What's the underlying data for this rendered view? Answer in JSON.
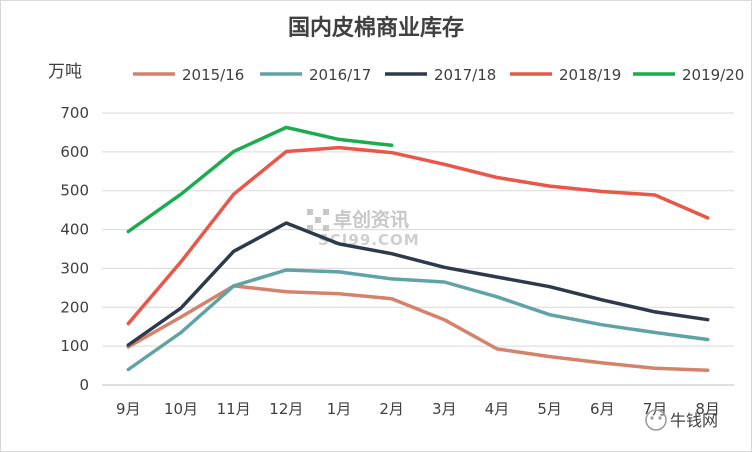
{
  "chart_data": {
    "type": "line",
    "title": "国内皮棉商业库存",
    "ylabel": "万吨",
    "xlabel": "",
    "categories": [
      "9月",
      "10月",
      "11月",
      "12月",
      "1月",
      "2月",
      "3月",
      "4月",
      "5月",
      "6月",
      "7月",
      "8月"
    ],
    "ylim": [
      0,
      700
    ],
    "yticks": [
      0,
      100,
      200,
      300,
      400,
      500,
      600,
      700
    ],
    "grid": true,
    "legend_position": "top",
    "series": [
      {
        "name": "2015/16",
        "color": "#d4826a",
        "values": [
          98,
          175,
          255,
          240,
          235,
          222,
          168,
          93,
          73,
          57,
          43,
          38
        ]
      },
      {
        "name": "2016/17",
        "color": "#5fa3a6",
        "values": [
          40,
          135,
          255,
          296,
          291,
          273,
          265,
          227,
          181,
          155,
          135,
          117
        ]
      },
      {
        "name": "2017/18",
        "color": "#2e3a4b",
        "values": [
          103,
          198,
          344,
          417,
          363,
          338,
          303,
          278,
          253,
          219,
          188,
          168
        ]
      },
      {
        "name": "2018/19",
        "color": "#e8574a",
        "values": [
          158,
          317,
          491,
          601,
          611,
          598,
          568,
          534,
          512,
          498,
          489,
          430
        ]
      },
      {
        "name": "2019/20",
        "color": "#1aac4f",
        "values": [
          395,
          491,
          601,
          663,
          632,
          617,
          null,
          null,
          null,
          null,
          null,
          null
        ]
      }
    ]
  },
  "watermark": {
    "text": "卓创资讯",
    "subtext": "SCI99.COM"
  },
  "brand": {
    "text": "牛钱网"
  }
}
